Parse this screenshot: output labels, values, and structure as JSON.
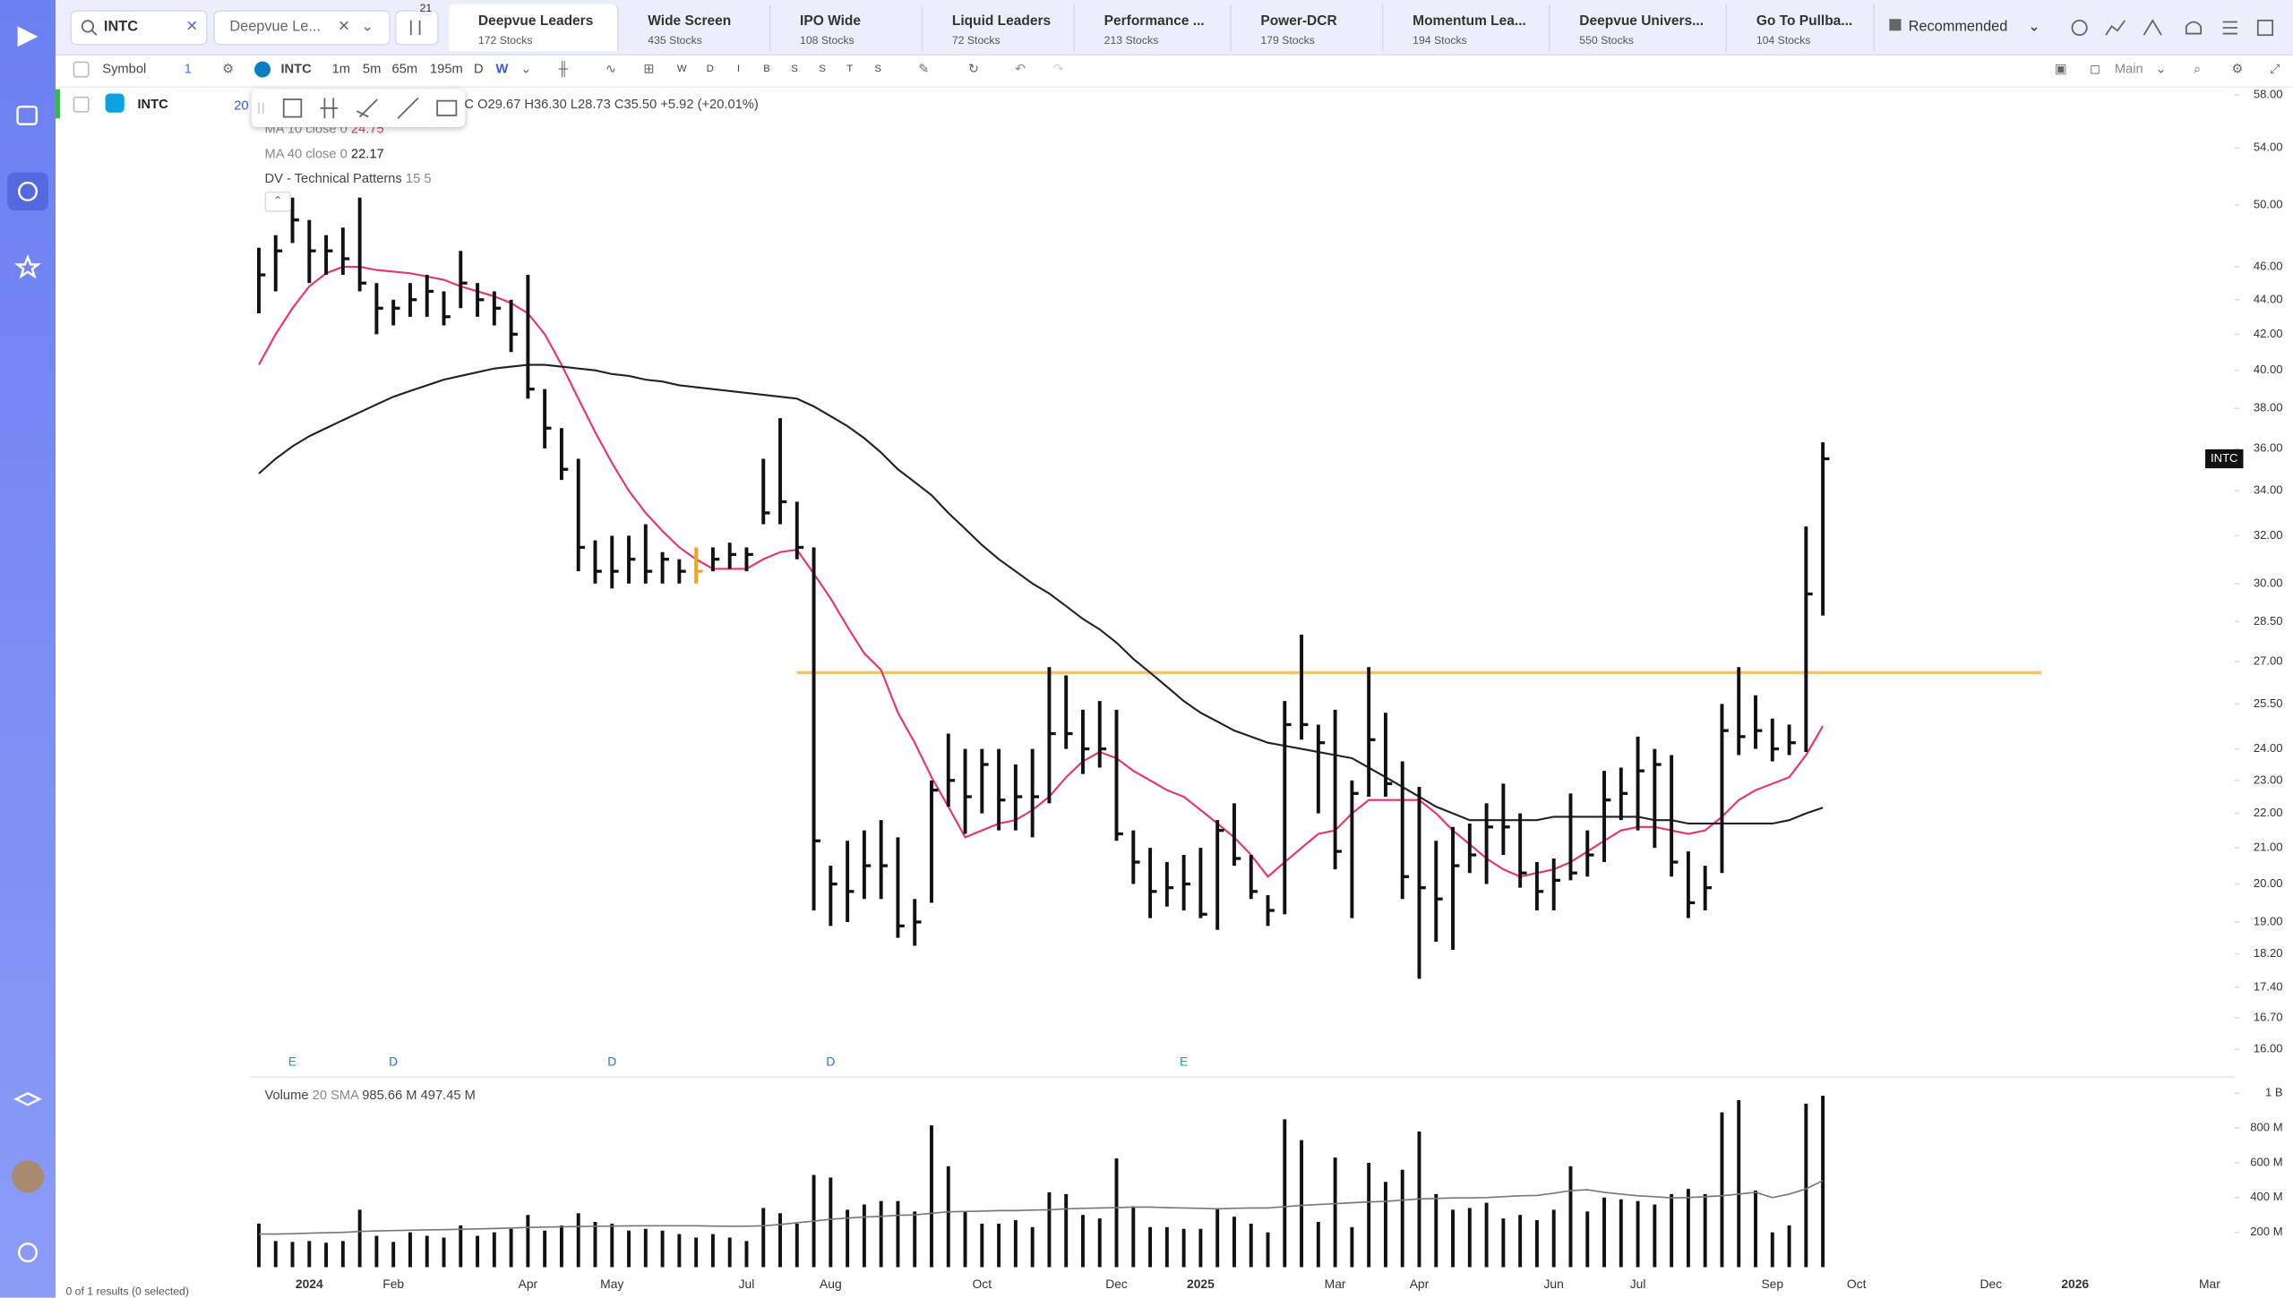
{
  "header": {
    "search": "INTC",
    "watchlist": "Deepvue Le...",
    "badge": "21",
    "sort": "Recommended",
    "tabs": [
      {
        "name": "Deepvue Leaders",
        "count": "172 Stocks"
      },
      {
        "name": "Wide Screen",
        "count": "435 Stocks"
      },
      {
        "name": "IPO Wide",
        "count": "108 Stocks"
      },
      {
        "name": "Liquid Leaders",
        "count": "72 Stocks"
      },
      {
        "name": "Performance ...",
        "count": "213 Stocks"
      },
      {
        "name": "Power-DCR",
        "count": "179 Stocks"
      },
      {
        "name": "Momentum Lea...",
        "count": "194 Stocks"
      },
      {
        "name": "Deepvue Univers...",
        "count": "550 Stocks"
      },
      {
        "name": "Go To Pullba...",
        "count": "104 Stocks"
      }
    ]
  },
  "toolbar": {
    "symbol_header": "Symbol",
    "badge": "1",
    "symbol": "INTC",
    "intervals": [
      "1m",
      "5m",
      "65m",
      "195m",
      "D",
      "W"
    ],
    "marks": [
      "W",
      "D",
      "I",
      "B",
      "S",
      "S",
      "T",
      "S"
    ],
    "layout": "Main"
  },
  "watchlist": {
    "rows": [
      {
        "symbol": "INTC",
        "value": "20"
      }
    ],
    "footer": "0 of 1 results (0 selected)"
  },
  "legend": {
    "ohlc": "O29.67 H36.30 L28.73 C35.50 +5.92 (+20.01%)",
    "patterns": "DV - Technical Patterns",
    "patterns_args": "15 5"
  },
  "chart_data": {
    "type": "ohlc",
    "symbol": "INTC",
    "color": "#111111",
    "log": true,
    "categories": [
      null,
      null,
      null,
      "2024",
      null,
      null,
      null,
      null,
      "Feb",
      null,
      null,
      null,
      null,
      null,
      null,
      null,
      "Apr",
      null,
      null,
      null,
      null,
      "May",
      null,
      null,
      null,
      null,
      null,
      null,
      null,
      "Jul",
      null,
      null,
      null,
      null,
      "Aug",
      null,
      null,
      null,
      null,
      null,
      null,
      null,
      null,
      "Oct",
      null,
      null,
      null,
      null,
      null,
      null,
      null,
      "Dec",
      null,
      null,
      null,
      null,
      "2025",
      null,
      null,
      null,
      null,
      null,
      null,
      null,
      "Mar",
      null,
      null,
      null,
      null,
      "Apr",
      null,
      null,
      null,
      null,
      null,
      null,
      null,
      "Jun",
      null,
      null,
      null,
      null,
      "Jul",
      null,
      null,
      null,
      null,
      null,
      null,
      null,
      "Sep",
      null,
      null,
      null,
      null,
      "Oct",
      null,
      null,
      null,
      null,
      null,
      null,
      null,
      "Dec",
      null,
      null,
      null,
      null,
      "2026",
      null,
      null,
      null,
      null,
      null,
      null,
      null,
      "Mar",
      null
    ],
    "high": [
      47.2,
      48,
      50.5,
      49,
      48,
      48.5,
      50.5,
      45,
      44,
      45,
      45.5,
      44.5,
      47,
      45,
      44.5,
      44,
      45.5,
      39,
      37,
      35.5,
      31.8,
      32,
      32,
      32.5,
      31.3,
      31,
      31.5,
      31.5,
      31.7,
      31.5,
      35.5,
      37.5,
      33.5,
      31.5,
      20.5,
      21.2,
      21.5,
      21.8,
      21.3,
      19.6,
      23,
      24.5,
      24,
      24,
      24,
      23.5,
      24,
      26.8,
      26.5,
      25.3,
      25.6,
      25.3,
      21.5,
      21,
      20.6,
      20.8,
      21,
      21.8,
      22.3,
      20.8,
      19.7,
      25.6,
      28,
      24.8,
      25.3,
      23,
      26.8,
      25.2,
      23.6,
      22.8,
      21.2,
      21.6,
      21.7,
      22.3,
      22.9,
      22,
      20.6,
      20.7,
      22.6,
      21.5,
      23.3,
      23.4,
      24.4,
      24,
      23.8,
      20.9,
      20.5,
      25.5,
      26.8,
      25.8,
      25,
      24.8,
      32.4,
      36.3,
      null,
      null,
      null,
      null,
      null,
      null,
      null,
      null,
      null,
      null,
      null,
      null,
      null,
      null,
      null,
      null,
      null,
      null,
      null,
      null,
      null,
      null,
      null,
      null
    ],
    "low": [
      43.2,
      44.5,
      47.5,
      45,
      45.5,
      45.5,
      44.5,
      42,
      42.5,
      43,
      43,
      42.5,
      43.5,
      43,
      42.5,
      41,
      38.5,
      36,
      34.5,
      30.5,
      30,
      29.8,
      30,
      30,
      30,
      30,
      30,
      30.5,
      30.6,
      30.5,
      32.5,
      32.5,
      31,
      19.3,
      18.9,
      19,
      19.6,
      19.6,
      18.6,
      18.4,
      19.5,
      22.2,
      21.4,
      22,
      21.5,
      21.5,
      21.3,
      22.3,
      24,
      23.2,
      23.4,
      21.2,
      20,
      19.1,
      19.4,
      19.3,
      19.1,
      18.8,
      20.5,
      19.6,
      18.9,
      19.2,
      24.3,
      22,
      20.4,
      19.1,
      22.5,
      22.5,
      19.6,
      17.6,
      18.5,
      18.3,
      20.3,
      20,
      20.8,
      19.9,
      19.3,
      19.3,
      20.1,
      20.2,
      20.6,
      21.8,
      21.5,
      21,
      20.2,
      19.1,
      19.3,
      20.3,
      23.8,
      24,
      23.6,
      23.8,
      23.9,
      28.73,
      null,
      null,
      null,
      null,
      null,
      null,
      null,
      null,
      null,
      null,
      null,
      null,
      null,
      null,
      null,
      null,
      null,
      null,
      null,
      null,
      null,
      null,
      null,
      null
    ],
    "close": [
      45.5,
      47,
      49,
      47,
      47,
      46.5,
      45,
      43.5,
      43.5,
      44,
      44.5,
      43,
      45,
      44,
      43.5,
      42,
      39,
      37,
      35,
      31.5,
      30.5,
      30.5,
      31,
      30.5,
      31,
      30.5,
      30.5,
      31,
      31.2,
      31.2,
      33,
      33.5,
      31.5,
      21.2,
      20,
      19.8,
      20.5,
      20.5,
      18.9,
      19,
      22.7,
      23,
      22.5,
      23.5,
      22.4,
      22.5,
      22.5,
      24.5,
      24.5,
      24,
      24,
      21.4,
      20.6,
      19.8,
      19.9,
      20,
      19.2,
      21.5,
      20.7,
      19.8,
      19.3,
      24.8,
      24.8,
      24.2,
      20.9,
      22.6,
      24.3,
      22.9,
      20.2,
      19.9,
      19.6,
      20.5,
      20.8,
      21.6,
      21.6,
      20.3,
      19.8,
      20.1,
      20.3,
      20.8,
      22.4,
      22.6,
      23.3,
      23.5,
      20.6,
      19.5,
      19.9,
      24.6,
      24.4,
      24.6,
      24,
      24.2,
      29.58,
      35.5,
      null,
      null,
      null,
      null,
      null,
      null,
      null,
      null,
      null,
      null,
      null,
      null,
      null,
      null,
      null,
      null,
      null,
      null,
      null,
      null,
      null,
      null,
      null,
      null
    ],
    "highlight": {
      "index": 26,
      "color": "#f5a31a"
    },
    "series": [
      {
        "name": "MA 10 close 0",
        "last_label": "24.75",
        "color": "#e8336b",
        "values": [
          40.3,
          42,
          43.5,
          44.8,
          45.6,
          46,
          46,
          45.8,
          45.7,
          45.6,
          45.4,
          45.2,
          44.8,
          44.5,
          44.2,
          43.8,
          43.2,
          42,
          40.3,
          38.5,
          36.8,
          35.3,
          34,
          33,
          32.2,
          31.5,
          31,
          30.6,
          30.6,
          30.6,
          31,
          31.3,
          31.4,
          30.4,
          29.4,
          28.3,
          27.3,
          26.7,
          25.2,
          24.2,
          23.1,
          22.2,
          21.3,
          21.5,
          21.7,
          21.8,
          22.1,
          22.5,
          23.1,
          23.6,
          23.9,
          23.7,
          23.3,
          23,
          22.7,
          22.5,
          22.1,
          21.7,
          21.3,
          20.8,
          20.2,
          20.6,
          21,
          21.4,
          21.5,
          22,
          22.4,
          22.4,
          22.4,
          22.4,
          22,
          21.5,
          21.1,
          20.7,
          20.4,
          20.2,
          20.3,
          20.4,
          20.6,
          20.9,
          21.2,
          21.5,
          21.6,
          21.6,
          21.5,
          21.4,
          21.5,
          21.9,
          22.4,
          22.7,
          22.9,
          23.1,
          23.8,
          24.75,
          null,
          null,
          null,
          null,
          null,
          null,
          null,
          null,
          null,
          null,
          null,
          null,
          null,
          null,
          null,
          null,
          null,
          null,
          null,
          null,
          null,
          null,
          null,
          null
        ]
      },
      {
        "name": "MA 40 close 0",
        "last_label": "22.17",
        "color": "#222222",
        "values": [
          34.8,
          35.5,
          36.1,
          36.6,
          37,
          37.4,
          37.8,
          38.2,
          38.6,
          38.9,
          39.2,
          39.5,
          39.7,
          39.9,
          40.1,
          40.2,
          40.3,
          40.3,
          40.2,
          40.1,
          40,
          39.8,
          39.7,
          39.5,
          39.4,
          39.2,
          39.1,
          39,
          38.9,
          38.8,
          38.7,
          38.6,
          38.5,
          38.1,
          37.6,
          37.1,
          36.5,
          35.8,
          35,
          34.4,
          33.8,
          33,
          32.3,
          31.6,
          31,
          30.5,
          30,
          29.6,
          29.1,
          28.6,
          28.2,
          27.7,
          27.1,
          26.6,
          26.1,
          25.6,
          25.2,
          24.9,
          24.6,
          24.4,
          24.2,
          24.1,
          24,
          23.9,
          23.8,
          23.7,
          23.4,
          23.1,
          22.8,
          22.5,
          22.2,
          22,
          21.8,
          21.8,
          21.8,
          21.8,
          21.8,
          21.9,
          21.9,
          21.9,
          21.9,
          21.9,
          21.9,
          21.8,
          21.8,
          21.7,
          21.7,
          21.7,
          21.7,
          21.7,
          21.7,
          21.8,
          22,
          22.17,
          null,
          null,
          null,
          null,
          null,
          null,
          null,
          null,
          null,
          null,
          null,
          null,
          null,
          null,
          null,
          null,
          null,
          null,
          null,
          null,
          null,
          null,
          null,
          null
        ]
      }
    ],
    "ylim": [
      16,
      58
    ],
    "yticks": [
      {
        "value": 58,
        "label": "58.00"
      },
      {
        "value": 54,
        "label": "54.00"
      },
      {
        "value": 50,
        "label": "50.00"
      },
      {
        "value": 46,
        "label": "46.00"
      },
      {
        "value": 44,
        "label": "44.00"
      },
      {
        "value": 42,
        "label": "42.00"
      },
      {
        "value": 40,
        "label": "40.00"
      },
      {
        "value": 38,
        "label": "38.00"
      },
      {
        "value": 36,
        "label": "36.00"
      },
      {
        "value": 34,
        "label": "34.00"
      },
      {
        "value": 32,
        "label": "32.00"
      },
      {
        "value": 30,
        "label": "30.00"
      },
      {
        "value": 28.5,
        "label": "28.50"
      },
      {
        "value": 27,
        "label": "27.00"
      },
      {
        "value": 25.5,
        "label": "25.50"
      },
      {
        "value": 24,
        "label": "24.00"
      },
      {
        "value": 23,
        "label": "23.00"
      },
      {
        "value": 22,
        "label": "22.00"
      },
      {
        "value": 21,
        "label": "21.00"
      },
      {
        "value": 20,
        "label": "20.00"
      },
      {
        "value": 19,
        "label": "19.00"
      },
      {
        "value": 18.2,
        "label": "18.20"
      },
      {
        "value": 17.4,
        "label": "17.40"
      },
      {
        "value": 16.7,
        "label": "16.70"
      },
      {
        "value": 16,
        "label": "16.00"
      }
    ],
    "hline": {
      "value": 26.6,
      "color": "#f7c266",
      "from": 32,
      "to": 106
    },
    "events": [
      {
        "label": "E",
        "index": 2
      },
      {
        "label": "D",
        "index": 8
      },
      {
        "label": "D",
        "index": 21
      },
      {
        "label": "D",
        "index": 34
      },
      {
        "label": "E",
        "index": 55
      }
    ],
    "volume": {
      "name": "Volume",
      "sma_name": "20 SMA",
      "legend": [
        "985.66 M",
        "497.45 M"
      ],
      "color": "#111111",
      "sma_color": "#777777",
      "ylim": [
        0,
        1000
      ],
      "yticks": [
        {
          "value": 200,
          "label": "200 M"
        },
        {
          "value": 400,
          "label": "400 M"
        },
        {
          "value": 600,
          "label": "600 M"
        },
        {
          "value": 800,
          "label": "800 M"
        },
        {
          "value": 1000,
          "label": "1 B"
        }
      ],
      "values": [
        250,
        150,
        145,
        150,
        140,
        150,
        330,
        180,
        145,
        200,
        180,
        170,
        240,
        180,
        200,
        220,
        300,
        210,
        240,
        310,
        260,
        250,
        210,
        220,
        210,
        190,
        170,
        190,
        170,
        150,
        340,
        310,
        250,
        530,
        515,
        330,
        360,
        380,
        380,
        320,
        815,
        580,
        320,
        250,
        250,
        270,
        230,
        430,
        420,
        300,
        280,
        625,
        350,
        230,
        230,
        220,
        220,
        340,
        290,
        250,
        200,
        850,
        730,
        260,
        630,
        230,
        600,
        490,
        560,
        780,
        420,
        330,
        340,
        370,
        280,
        300,
        270,
        330,
        580,
        320,
        400,
        390,
        380,
        360,
        420,
        450,
        420,
        890,
        960,
        440,
        200,
        240,
        940,
        985.66,
        null,
        null,
        null,
        null,
        null,
        null,
        null,
        null,
        null,
        null,
        null,
        null,
        null,
        null,
        null,
        null,
        null,
        null,
        null,
        null,
        null,
        null,
        null,
        null
      ],
      "sma": [
        190,
        190,
        192,
        195,
        198,
        200,
        205,
        208,
        210,
        212,
        214,
        215,
        218,
        220,
        222,
        225,
        228,
        230,
        232,
        233,
        235,
        236,
        237,
        238,
        238,
        238,
        238,
        236,
        235,
        235,
        238,
        245,
        255,
        265,
        275,
        282,
        288,
        292,
        298,
        300,
        310,
        318,
        320,
        322,
        325,
        325,
        328,
        330,
        335,
        338,
        340,
        342,
        345,
        345,
        342,
        340,
        338,
        335,
        338,
        340,
        340,
        348,
        355,
        360,
        365,
        370,
        375,
        378,
        385,
        392,
        395,
        398,
        398,
        400,
        405,
        410,
        412,
        425,
        440,
        445,
        430,
        420,
        410,
        405,
        398,
        400,
        405,
        410,
        420,
        430,
        400,
        420,
        450,
        497.45,
        null,
        null,
        null,
        null,
        null,
        null,
        null,
        null,
        null,
        null,
        null,
        null,
        null,
        null,
        null,
        null,
        null,
        null,
        null,
        null,
        null,
        null,
        null,
        null
      ]
    }
  }
}
